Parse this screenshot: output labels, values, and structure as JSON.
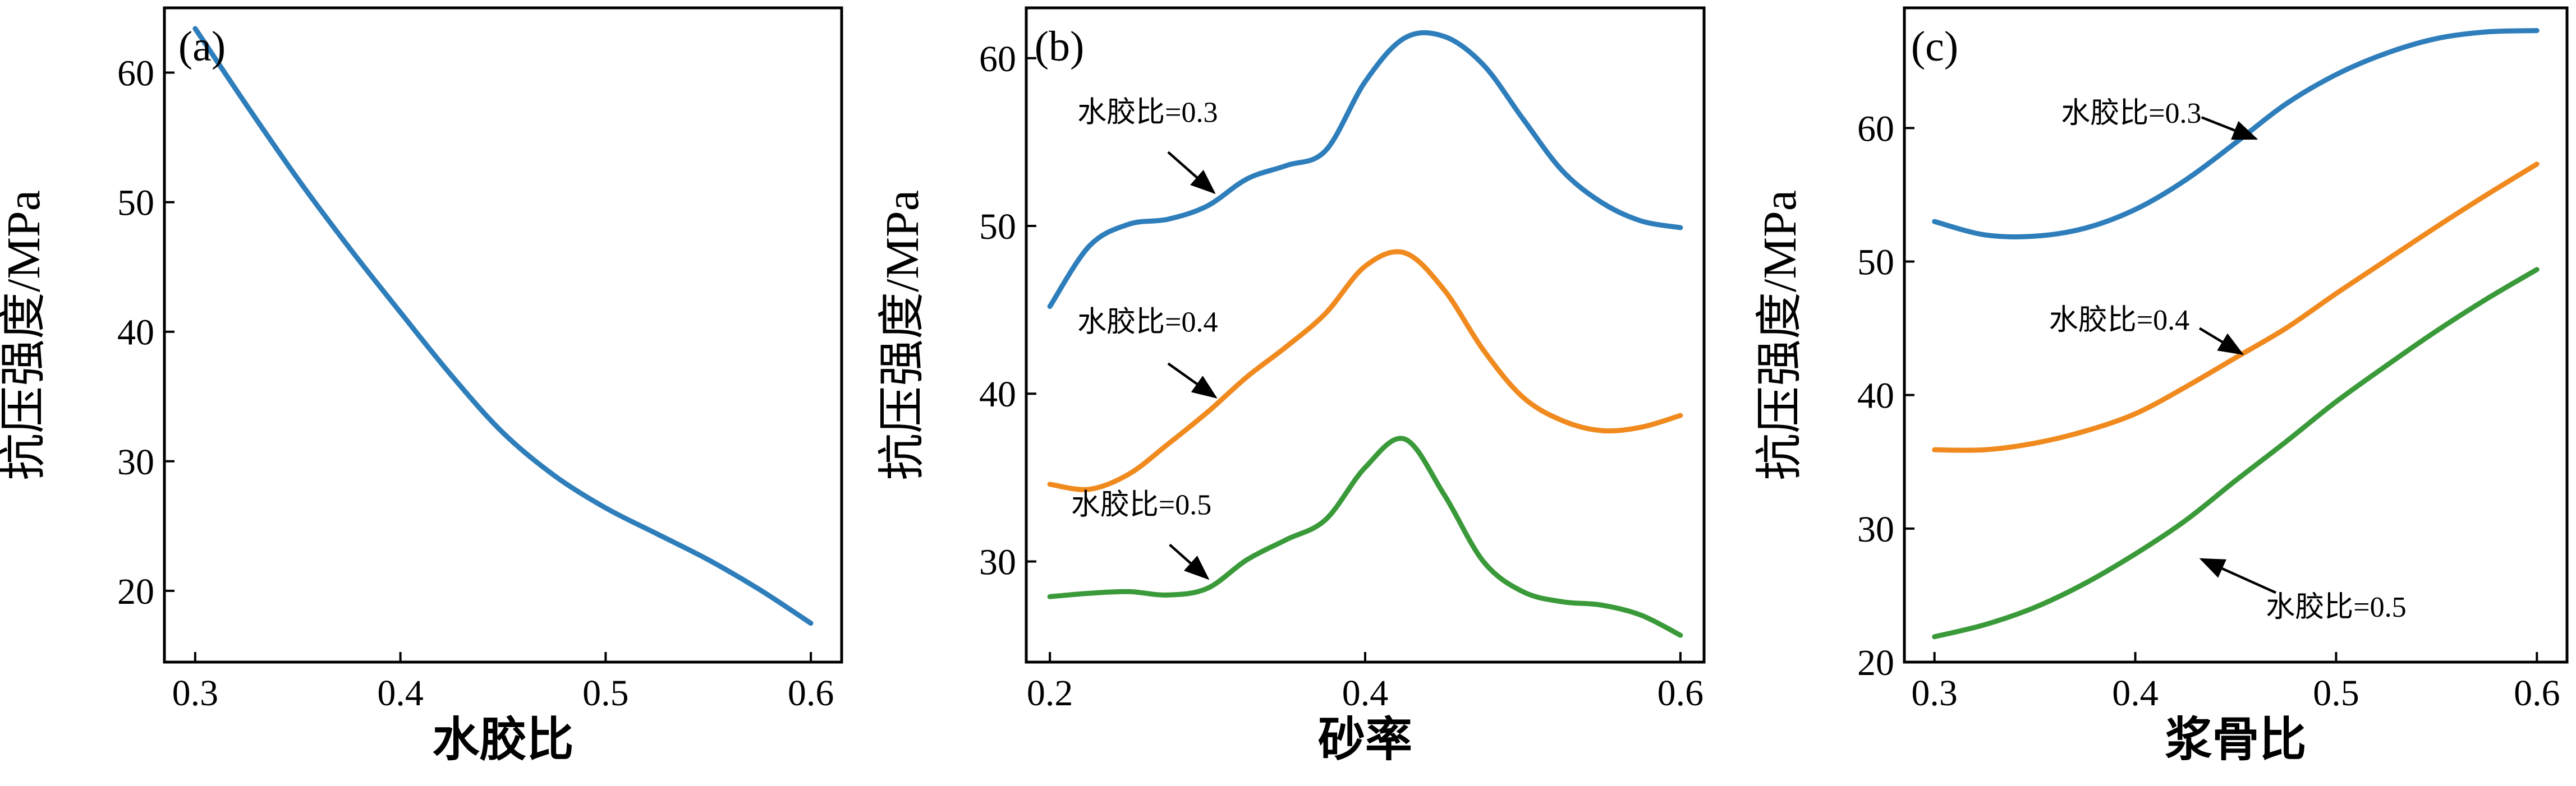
{
  "colors": {
    "blue": "#2e7ebb",
    "orange": "#f08a1f",
    "green": "#3a9a3a",
    "axis": "#000000"
  },
  "chart_data": [
    {
      "id": "a",
      "type": "line",
      "panel_label": "(a)",
      "xlabel": "水胶比",
      "ylabel": "抗压强度/MPa",
      "xlim": [
        0.285,
        0.615
      ],
      "ylim": [
        14.5,
        65
      ],
      "xticks": [
        0.3,
        0.4,
        0.5,
        0.6
      ],
      "xtick_labels": [
        "0.3",
        "0.4",
        "0.5",
        "0.6"
      ],
      "yticks": [
        20,
        30,
        40,
        50,
        60
      ],
      "ytick_labels": [
        "20",
        "30",
        "40",
        "50",
        "60"
      ],
      "grid": false,
      "series": [
        {
          "color": "#2e7ebb",
          "x": [
            0.3,
            0.325,
            0.35,
            0.375,
            0.4,
            0.425,
            0.45,
            0.475,
            0.5,
            0.525,
            0.55,
            0.575,
            0.6
          ],
          "y": [
            63.4,
            57.5,
            51.8,
            46.5,
            41.5,
            36.6,
            32.2,
            28.9,
            26.4,
            24.4,
            22.4,
            20.1,
            17.5
          ]
        }
      ],
      "annotations": []
    },
    {
      "id": "b",
      "type": "line",
      "panel_label": "(b)",
      "xlabel": "砂率",
      "ylabel": "抗压强度/MPa",
      "xlim": [
        0.185,
        0.615
      ],
      "ylim": [
        24,
        63
      ],
      "xticks": [
        0.2,
        0.4,
        0.6
      ],
      "xtick_labels": [
        "0.2",
        "0.4",
        "0.6"
      ],
      "yticks": [
        30,
        40,
        50,
        60
      ],
      "ytick_labels": [
        "30",
        "40",
        "50",
        "60"
      ],
      "grid": false,
      "series": [
        {
          "color": "#2e7ebb",
          "x": [
            0.2,
            0.225,
            0.25,
            0.275,
            0.3,
            0.325,
            0.35,
            0.375,
            0.4,
            0.425,
            0.45,
            0.475,
            0.5,
            0.525,
            0.55,
            0.575,
            0.6
          ],
          "y": [
            45.2,
            48.8,
            50.1,
            50.4,
            51.2,
            52.8,
            53.6,
            54.5,
            58.6,
            61.2,
            61.3,
            59.6,
            56.4,
            53.3,
            51.4,
            50.3,
            49.9
          ]
        },
        {
          "color": "#f08a1f",
          "x": [
            0.2,
            0.225,
            0.25,
            0.275,
            0.3,
            0.325,
            0.35,
            0.375,
            0.4,
            0.425,
            0.45,
            0.475,
            0.5,
            0.525,
            0.55,
            0.575,
            0.6
          ],
          "y": [
            34.6,
            34.3,
            35.2,
            37.0,
            38.9,
            41.0,
            42.8,
            44.8,
            47.6,
            48.4,
            46.2,
            42.6,
            39.8,
            38.4,
            37.8,
            38.0,
            38.7
          ]
        },
        {
          "color": "#3a9a3a",
          "x": [
            0.2,
            0.225,
            0.25,
            0.275,
            0.3,
            0.325,
            0.35,
            0.375,
            0.4,
            0.425,
            0.45,
            0.475,
            0.5,
            0.525,
            0.55,
            0.575,
            0.6
          ],
          "y": [
            27.9,
            28.1,
            28.2,
            28.0,
            28.4,
            30.1,
            31.3,
            32.5,
            35.6,
            37.3,
            34.0,
            30.0,
            28.2,
            27.6,
            27.4,
            26.8,
            25.6
          ]
        }
      ],
      "annotations": [
        {
          "text": "水胶比=0.3",
          "text_x": 0.262,
          "text_y": 56.2,
          "arrow_from": [
            0.275,
            54.4
          ],
          "arrow_to": [
            0.304,
            52.0
          ]
        },
        {
          "text": "水胶比=0.4",
          "text_x": 0.262,
          "text_y": 43.7,
          "arrow_from": [
            0.275,
            41.8
          ],
          "arrow_to": [
            0.305,
            39.8
          ]
        },
        {
          "text": "水胶比=0.5",
          "text_x": 0.258,
          "text_y": 32.8,
          "arrow_from": [
            0.276,
            31.0
          ],
          "arrow_to": [
            0.3,
            29.0
          ]
        }
      ]
    },
    {
      "id": "c",
      "type": "line",
      "panel_label": "(c)",
      "xlabel": "浆骨比",
      "ylabel": "抗压强度/MPa",
      "xlim": [
        0.285,
        0.615
      ],
      "ylim": [
        20,
        69
      ],
      "xticks": [
        0.3,
        0.4,
        0.5,
        0.6
      ],
      "xtick_labels": [
        "0.3",
        "0.4",
        "0.5",
        "0.6"
      ],
      "yticks": [
        20,
        30,
        40,
        50,
        60
      ],
      "ytick_labels": [
        "20",
        "30",
        "40",
        "50",
        "60"
      ],
      "grid": false,
      "series": [
        {
          "color": "#2e7ebb",
          "x": [
            0.3,
            0.325,
            0.35,
            0.375,
            0.4,
            0.425,
            0.45,
            0.475,
            0.5,
            0.525,
            0.55,
            0.575,
            0.6
          ],
          "y": [
            53.0,
            52.0,
            51.9,
            52.5,
            53.9,
            56.1,
            58.9,
            61.8,
            64.0,
            65.6,
            66.7,
            67.2,
            67.3
          ]
        },
        {
          "color": "#f08a1f",
          "x": [
            0.3,
            0.325,
            0.35,
            0.375,
            0.4,
            0.425,
            0.45,
            0.475,
            0.5,
            0.525,
            0.55,
            0.575,
            0.6
          ],
          "y": [
            35.9,
            35.9,
            36.4,
            37.3,
            38.6,
            40.6,
            42.8,
            45.0,
            47.6,
            50.1,
            52.6,
            55.0,
            57.3
          ]
        },
        {
          "color": "#3a9a3a",
          "x": [
            0.3,
            0.325,
            0.35,
            0.375,
            0.4,
            0.425,
            0.45,
            0.475,
            0.5,
            0.525,
            0.55,
            0.575,
            0.6
          ],
          "y": [
            21.9,
            22.8,
            24.1,
            25.9,
            28.1,
            30.6,
            33.6,
            36.5,
            39.5,
            42.2,
            44.8,
            47.2,
            49.4
          ]
        }
      ],
      "annotations": [
        {
          "text": "水胶比=0.3",
          "text_x": 0.398,
          "text_y": 60.4,
          "arrow_from": [
            0.433,
            60.8
          ],
          "arrow_to": [
            0.46,
            59.2
          ]
        },
        {
          "text": "水胶比=0.4",
          "text_x": 0.392,
          "text_y": 44.9,
          "arrow_from": [
            0.432,
            45.0
          ],
          "arrow_to": [
            0.453,
            43.1
          ]
        },
        {
          "text": "水胶比=0.5",
          "text_x": 0.5,
          "text_y": 23.4,
          "arrow_from": [
            0.47,
            25.2
          ],
          "arrow_to": [
            0.433,
            27.7
          ]
        }
      ]
    }
  ]
}
